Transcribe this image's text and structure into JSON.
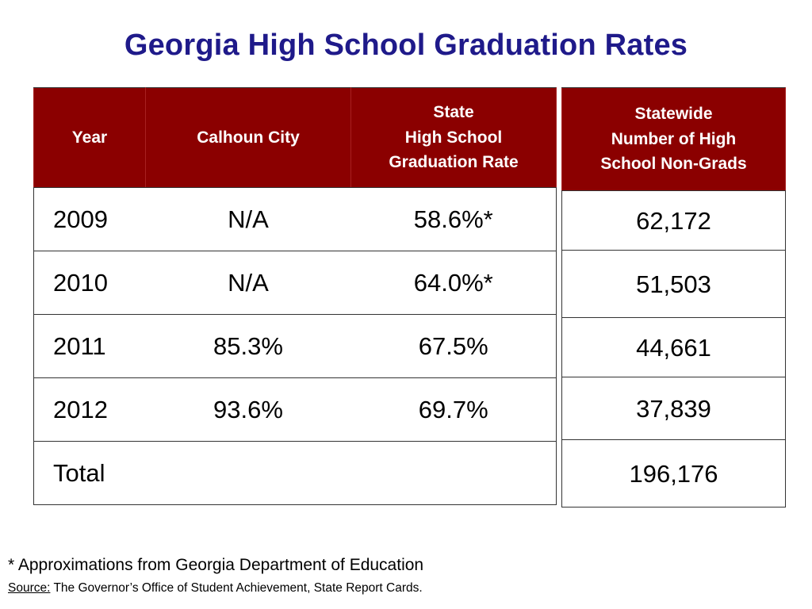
{
  "title": "Georgia High School Graduation Rates",
  "main_table": {
    "headers": {
      "year": "Year",
      "calhoun": "Calhoun City",
      "state_line1": "State",
      "state_line2": "High School",
      "state_line3": "Graduation Rate"
    },
    "rows": [
      {
        "year": "2009",
        "calhoun": "N/A",
        "state": "58.6%*"
      },
      {
        "year": "2010",
        "calhoun": "N/A",
        "state": "64.0%*"
      },
      {
        "year": "2011",
        "calhoun": "85.3%",
        "state": "67.5%"
      },
      {
        "year": "2012",
        "calhoun": "93.6%",
        "state": "69.7%"
      },
      {
        "year": "Total",
        "calhoun": "",
        "state": ""
      }
    ]
  },
  "side_table": {
    "header_line1": "Statewide",
    "header_line2": "Number of High",
    "header_line3": "School Non-Grads",
    "values": [
      "62,172",
      "51,503",
      "44,661",
      "37,839",
      "196,176"
    ]
  },
  "footnote": "* Approximations from Georgia Department of Education",
  "source": {
    "label": "Source:",
    "text": " The Governor’s Office of Student Achievement, State Report Cards."
  },
  "colors": {
    "title": "#1f1a8a",
    "header_bg": "#8b0000",
    "header_text": "#ffffff"
  }
}
